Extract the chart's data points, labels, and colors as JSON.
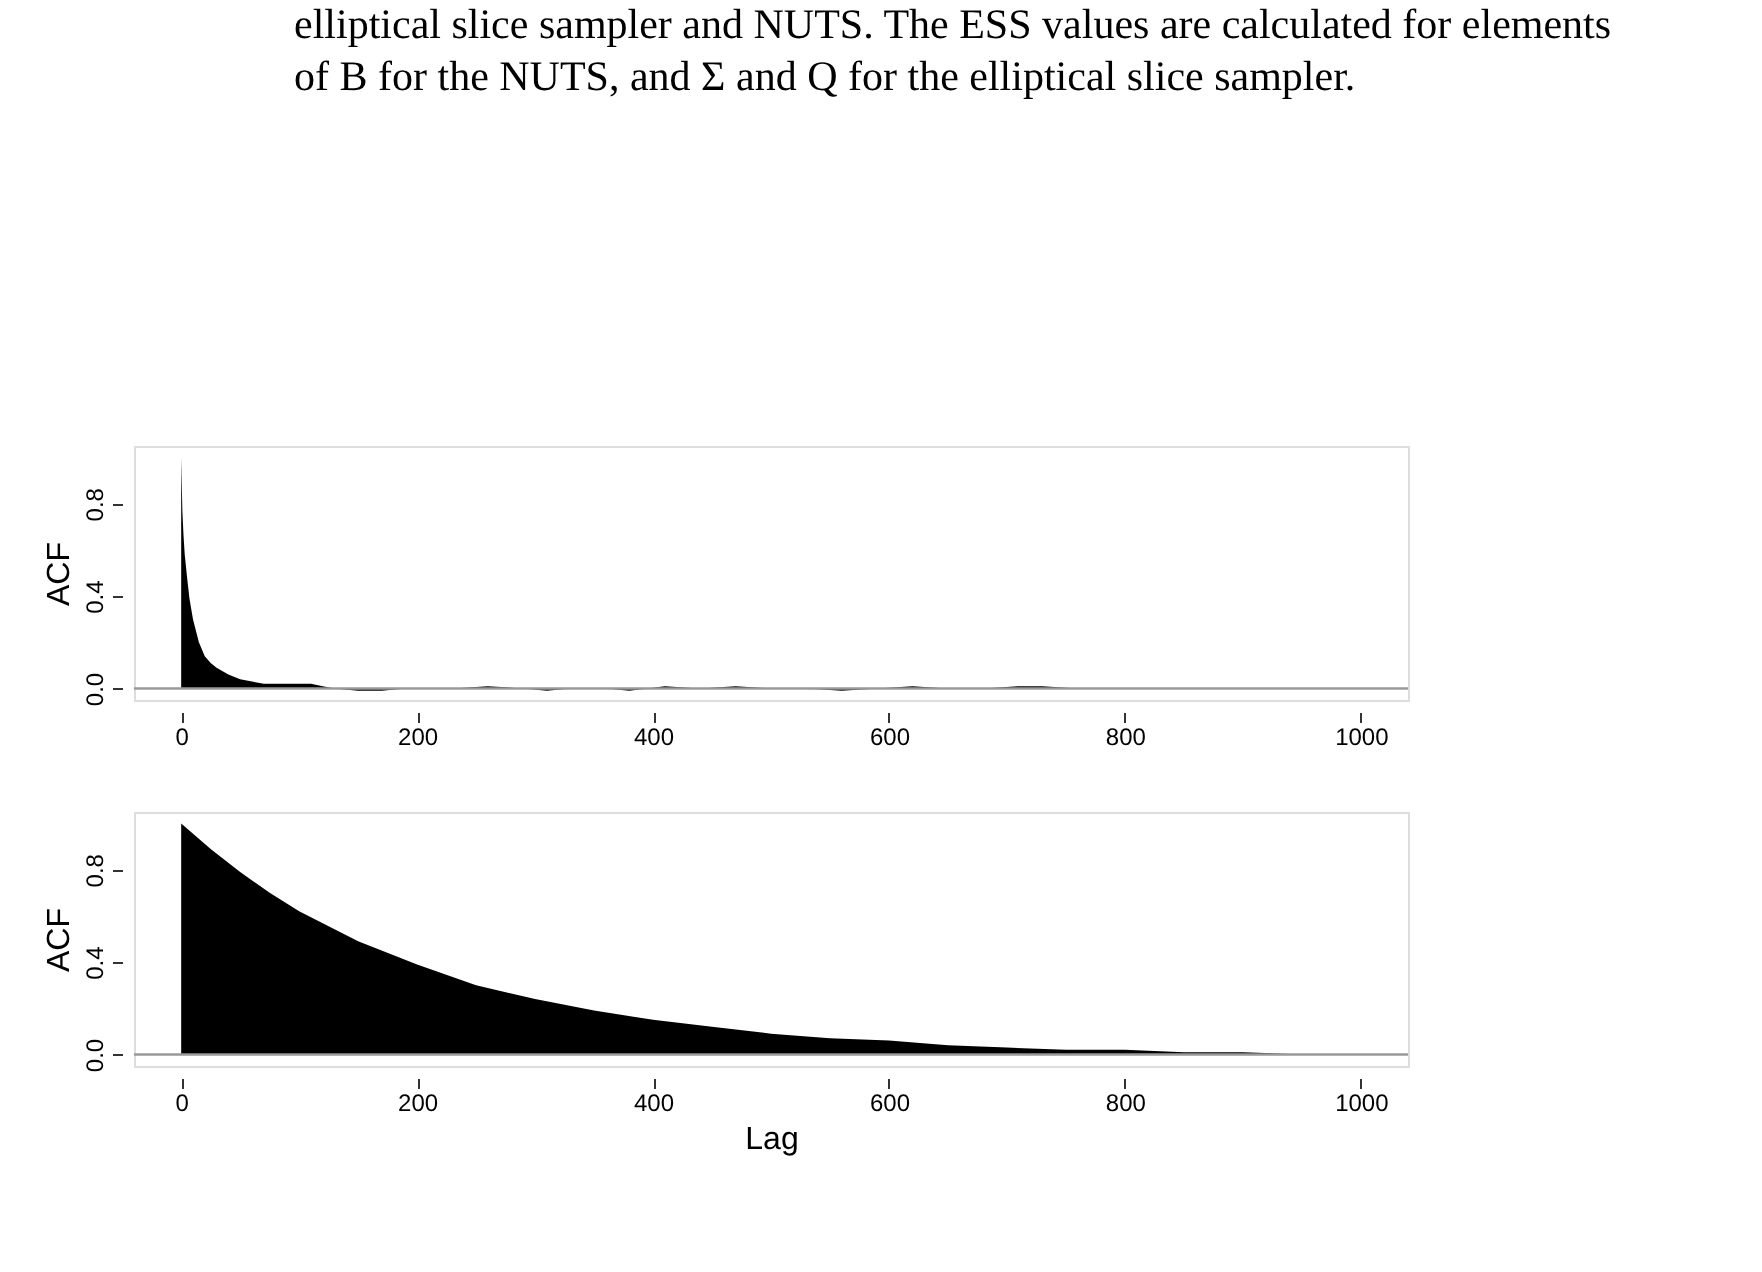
{
  "chart_data": [
    {
      "type": "area",
      "ylabel": "ACF",
      "annotations": [
        "elliptical slice sampler and NUTS. The ESS values are calculated for elements",
        "of B for the NUTS, and Σ and Q for the elliptical slice sampler."
      ],
      "x": [
        0,
        1,
        2,
        3,
        5,
        7,
        10,
        15,
        20,
        25,
        30,
        40,
        50,
        60,
        70,
        80,
        90,
        100,
        110,
        120,
        130,
        150,
        170,
        190,
        210,
        230,
        260,
        290,
        310,
        330,
        360,
        380,
        410,
        440,
        470,
        500,
        530,
        560,
        590,
        620,
        650,
        680,
        710,
        730,
        760,
        790,
        820,
        850,
        880,
        910,
        940,
        970,
        1000
      ],
      "series": [
        {
          "color": "#000000",
          "values": [
            1.0,
            0.77,
            0.66,
            0.58,
            0.48,
            0.39,
            0.3,
            0.2,
            0.14,
            0.11,
            0.09,
            0.06,
            0.04,
            0.03,
            0.02,
            0.02,
            0.02,
            0.02,
            0.02,
            0.01,
            0.0,
            -0.01,
            -0.01,
            0.0,
            0.0,
            0.0,
            0.01,
            0.0,
            -0.01,
            0.0,
            0.0,
            -0.01,
            0.01,
            0.0,
            0.01,
            0.0,
            0.0,
            -0.01,
            0.0,
            0.01,
            0.0,
            0.0,
            0.01,
            0.01,
            0.0,
            0.0,
            0.0,
            0.0,
            0.0,
            0.0,
            0.0,
            0.0,
            0.0
          ]
        }
      ],
      "xlim": [
        -40,
        1040
      ],
      "xticks": [
        0,
        200,
        400,
        600,
        800,
        1000
      ],
      "ylim": [
        -0.05,
        1.05
      ],
      "yticks": [
        {
          "value": 0,
          "label": "0.0"
        },
        {
          "value": 0.4,
          "label": "0.4"
        },
        {
          "value": 0.8,
          "label": "0.8"
        }
      ],
      "ref_lines": [
        {
          "axis": "y",
          "value": 0,
          "color": "#999999"
        }
      ]
    },
    {
      "type": "area",
      "ylabel": "ACF",
      "xlabel": "Lag",
      "x": [
        0,
        25,
        50,
        75,
        100,
        150,
        200,
        250,
        300,
        350,
        400,
        450,
        500,
        550,
        600,
        650,
        700,
        750,
        800,
        850,
        900,
        950,
        1000
      ],
      "series": [
        {
          "color": "#000000",
          "values": [
            1.0,
            0.89,
            0.79,
            0.7,
            0.62,
            0.49,
            0.39,
            0.3,
            0.24,
            0.19,
            0.15,
            0.12,
            0.09,
            0.07,
            0.06,
            0.04,
            0.03,
            0.02,
            0.02,
            0.01,
            0.01,
            0.0,
            0.0
          ]
        }
      ],
      "xlim": [
        -40,
        1040
      ],
      "xticks": [
        0,
        200,
        400,
        600,
        800,
        1000
      ],
      "ylim": [
        -0.05,
        1.05
      ],
      "yticks": [
        {
          "value": 0,
          "label": "0.0"
        },
        {
          "value": 0.4,
          "label": "0.4"
        },
        {
          "value": 0.8,
          "label": "0.8"
        }
      ],
      "ref_lines": [
        {
          "axis": "y",
          "value": 0,
          "color": "#999999"
        }
      ]
    }
  ]
}
